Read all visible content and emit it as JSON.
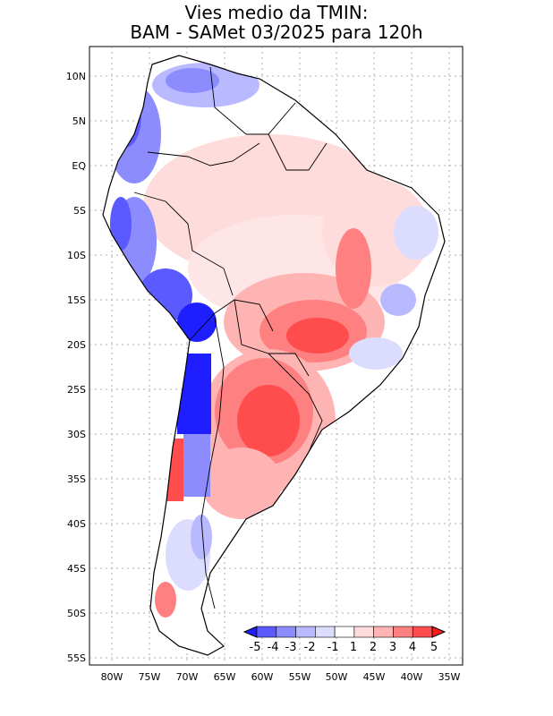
{
  "title": {
    "line1": "Vies medio da TMIN:",
    "line2": "BAM - SAMet 03/2025  para 120h"
  },
  "map": {
    "region": "South America",
    "lat_labels": [
      "10N",
      "5N",
      "EQ",
      "5S",
      "10S",
      "15S",
      "20S",
      "25S",
      "30S",
      "35S",
      "40S",
      "45S",
      "50S",
      "55S"
    ],
    "lon_labels": [
      "80W",
      "75W",
      "70W",
      "65W",
      "60W",
      "55W",
      "50W",
      "45W",
      "40W",
      "35W"
    ]
  },
  "colorbar": {
    "ticks": [
      "-5",
      "-4",
      "-3",
      "-2",
      "-1",
      "1",
      "2",
      "3",
      "4",
      "5"
    ],
    "colors": [
      "#1e1eff",
      "#5a5aff",
      "#8c8cff",
      "#b9b9ff",
      "#dcdcff",
      "#ffffff",
      "#ffdcdc",
      "#ffb4b4",
      "#ff8080",
      "#ff4c4c",
      "#ff1a1a"
    ]
  }
}
